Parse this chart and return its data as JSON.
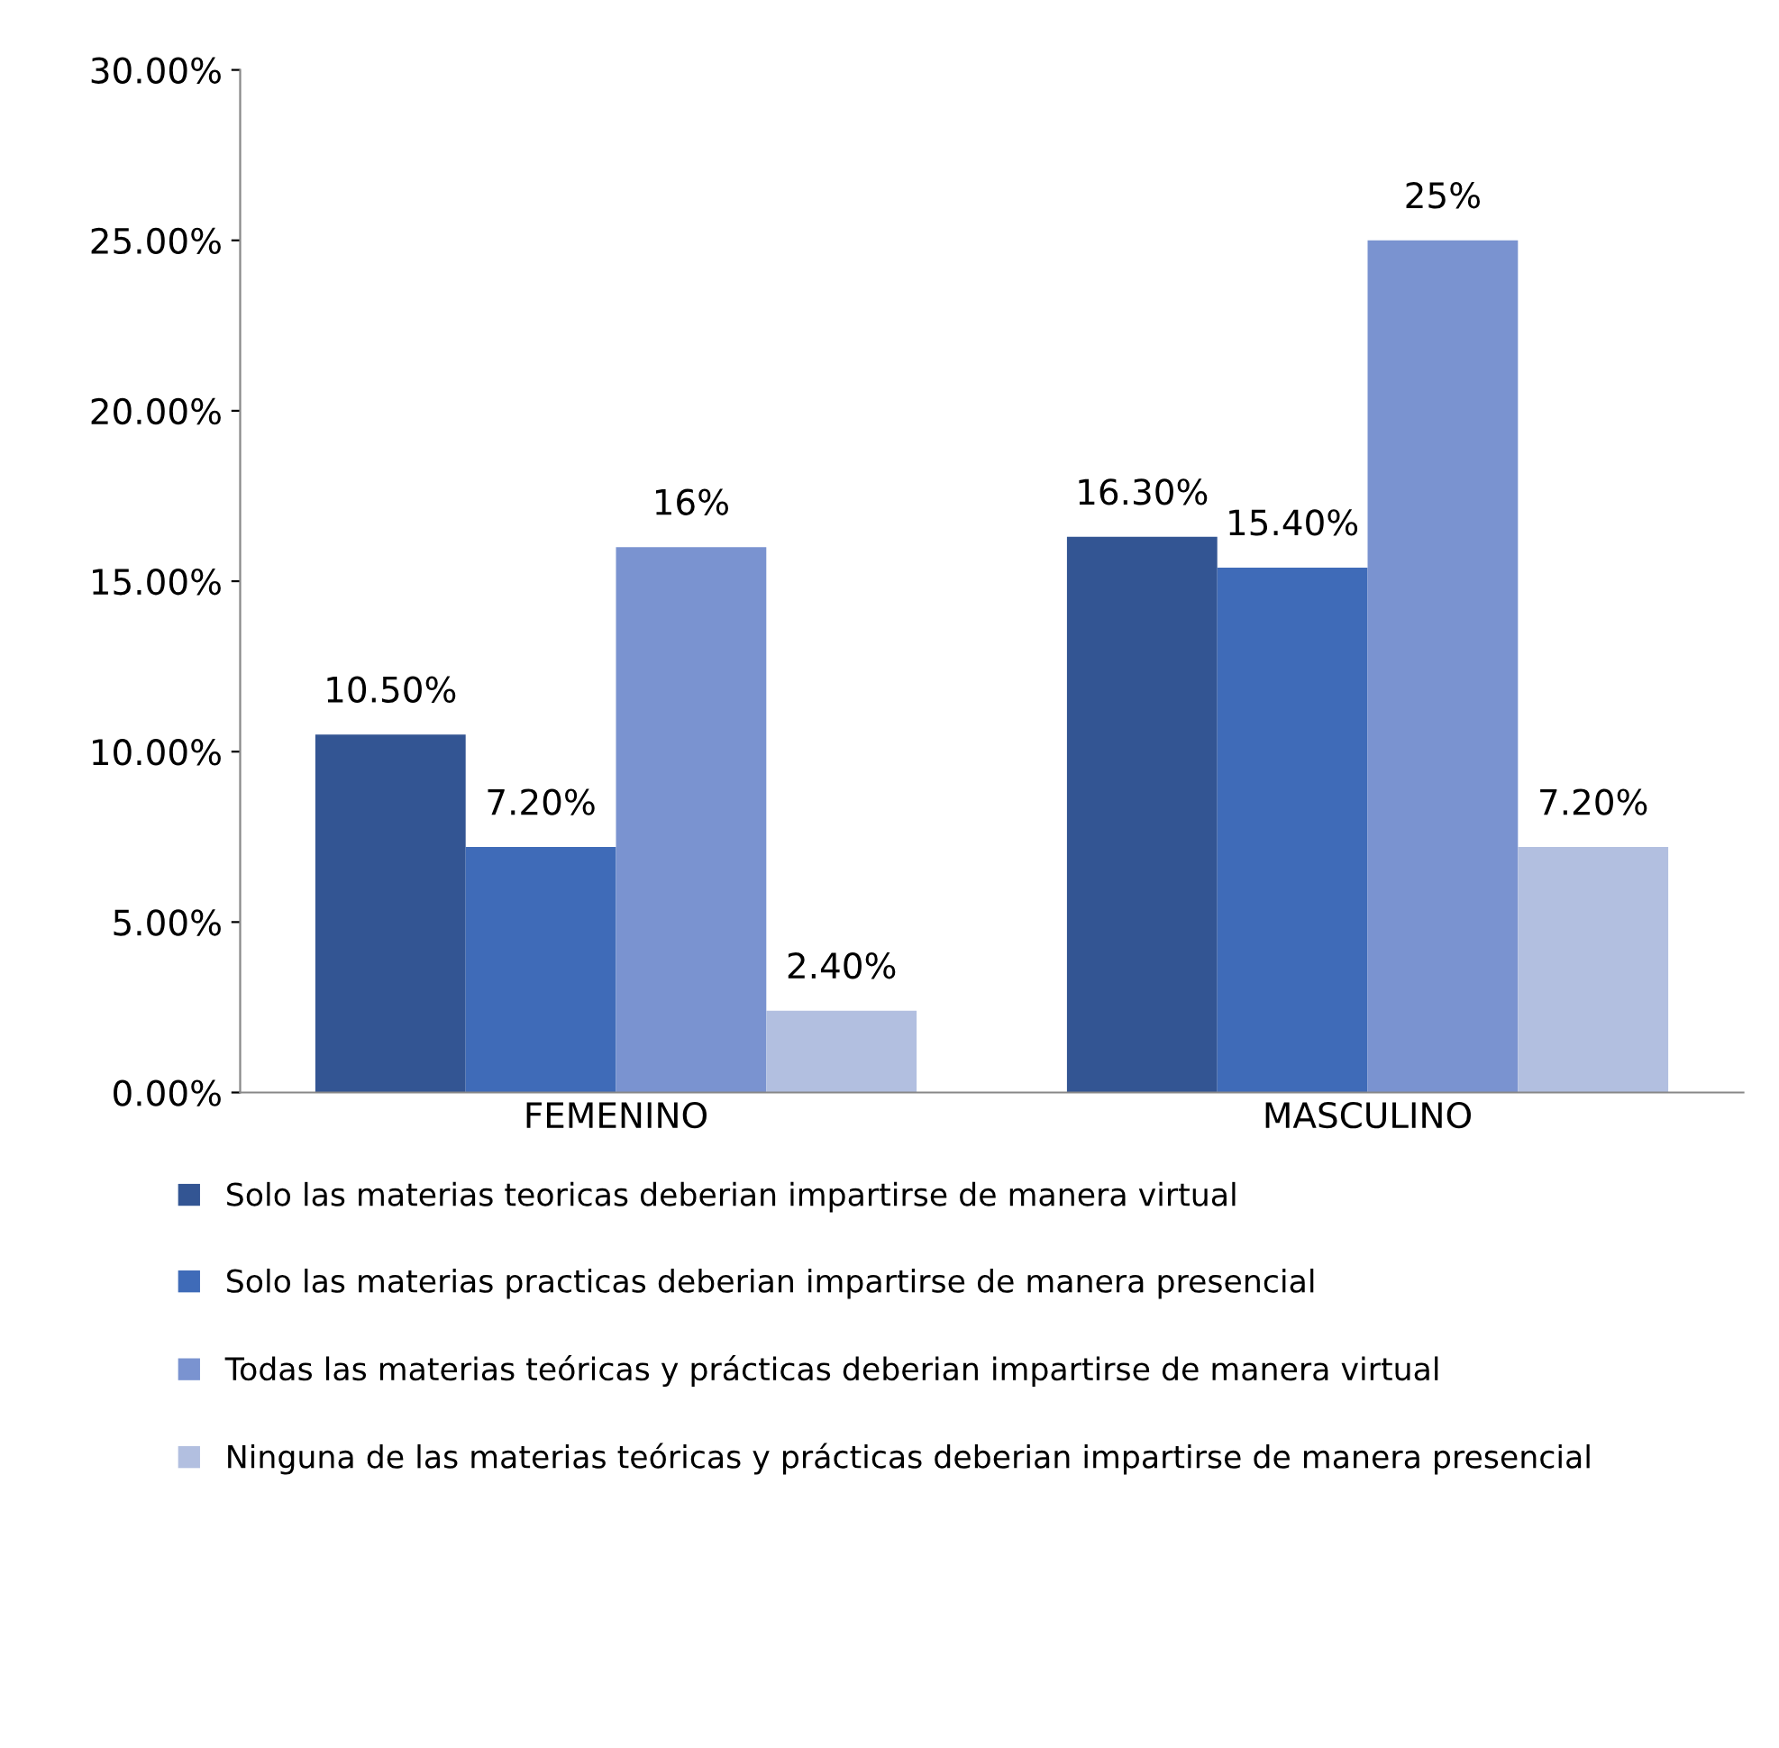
{
  "chart_data": {
    "type": "bar",
    "categories": [
      "FEMENINO",
      "MASCULINO"
    ],
    "series": [
      {
        "name": "Solo las materias teoricas deberian impartirse de manera virtual",
        "color": "#335593",
        "values": [
          10.5,
          16.3
        ],
        "value_labels": [
          "10.50%",
          "16.30%"
        ]
      },
      {
        "name": "Solo las materias practicas deberian impartirse de manera presencial",
        "color": "#3f6bb8",
        "values": [
          7.2,
          15.4
        ],
        "value_labels": [
          "7.20%",
          "15.40%"
        ]
      },
      {
        "name": "Todas las materias teóricas y prácticas deberian impartirse de manera virtual",
        "color": "#7a93d0",
        "values": [
          16,
          25
        ],
        "value_labels": [
          "16%",
          "25%"
        ]
      },
      {
        "name": "Ninguna de las materias teóricas y prácticas deberian impartirse de manera presencial",
        "color": "#b2bfe0",
        "values": [
          2.4,
          7.2
        ],
        "value_labels": [
          "2.40%",
          "7.20%"
        ]
      }
    ],
    "ylim": [
      0,
      30
    ],
    "yticks": [
      {
        "value": 0,
        "label": "0.00%"
      },
      {
        "value": 5,
        "label": "5.00%"
      },
      {
        "value": 10,
        "label": "10.00%"
      },
      {
        "value": 15,
        "label": "15.00%"
      },
      {
        "value": 20,
        "label": "20.00%"
      },
      {
        "value": 25,
        "label": "25.00%"
      },
      {
        "value": 30,
        "label": "30.00%"
      }
    ],
    "grid": false,
    "legend": "bottom"
  }
}
